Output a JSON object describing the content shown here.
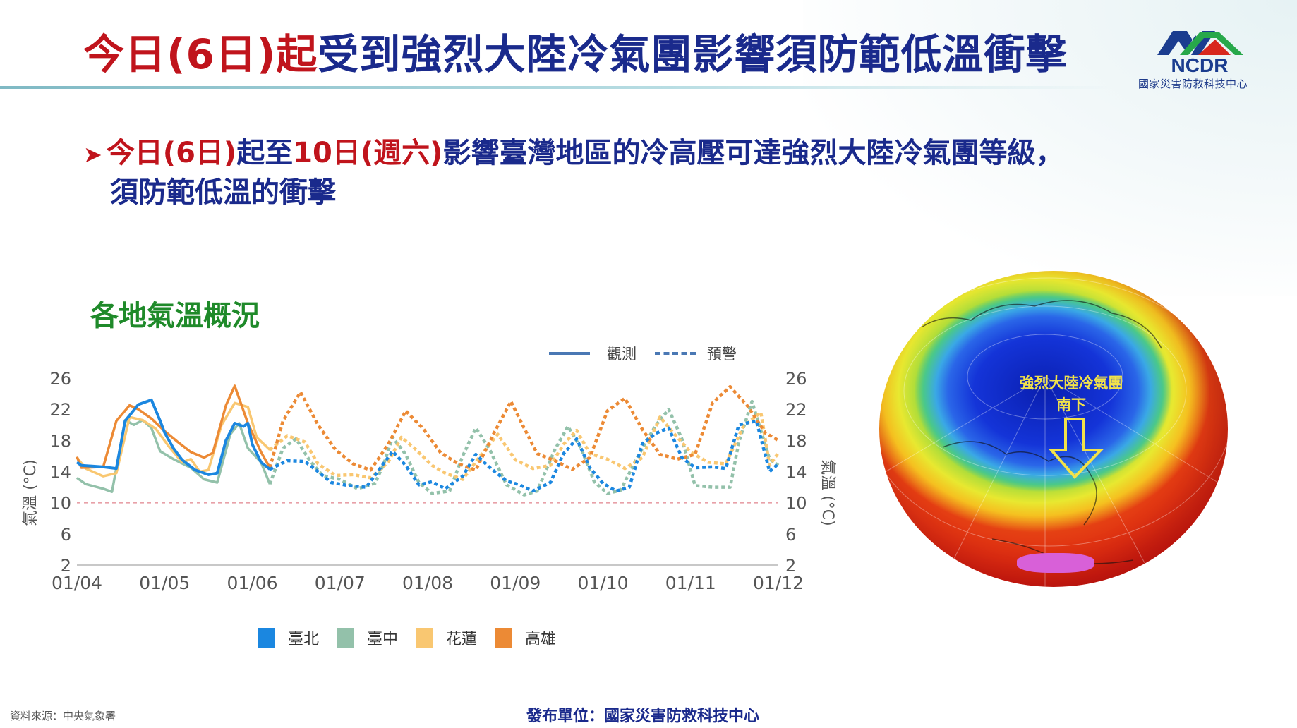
{
  "slide": {
    "title_red": "今日(6日)起",
    "title_blue": "受到強烈大陸冷氣團影響須防範低溫衝擊",
    "logo": {
      "acronym": "NCDR",
      "org_name": "國家災害防救科技中心"
    },
    "bullet": {
      "icon": "➤",
      "red_part1": "今日(6日)",
      "blue_part1": "起至",
      "red_part2": "10日(週六)",
      "blue_part2": "影響臺灣地區的冷高壓可達強烈大陸冷氣團等級，",
      "line2": "須防範低溫的衝擊"
    },
    "chart_section_title": "各地氣溫概況",
    "globe": {
      "label_line1": "強烈大陸冷氣團",
      "label_line2": "南下",
      "arrow_color": "#f2e24a"
    },
    "footer": {
      "source": "資料來源：中央氣象署",
      "publisher": "發布單位：國家災害防救科技中心"
    }
  },
  "chart_data": {
    "type": "line",
    "title": "各地氣溫概況",
    "xlabel": "",
    "ylabel": "氣溫 (°C)",
    "ylim": [
      2,
      26
    ],
    "yticks": [
      "26",
      "22",
      "18",
      "14",
      "10",
      "6",
      "2"
    ],
    "x_tick_labels": [
      "01/04",
      "01/05",
      "01/06",
      "01/07",
      "01/08",
      "01/09",
      "01/10",
      "01/11",
      "01/12"
    ],
    "reference_line": {
      "value": 10,
      "style": "dotted",
      "color": "#e8a0a8"
    },
    "line_style_legend": [
      {
        "label": "觀測",
        "style": "solid",
        "color": "#4a78b4"
      },
      {
        "label": "預警",
        "style": "dashed",
        "color": "#4a78b4"
      }
    ],
    "legend": [
      {
        "label": "臺北",
        "color": "#1b87e0"
      },
      {
        "label": "臺中",
        "color": "#93c1aa"
      },
      {
        "label": "花蓮",
        "color": "#f9c771"
      },
      {
        "label": "高雄",
        "color": "#ec8a35"
      }
    ],
    "observed_until_day": 2.2,
    "series": [
      {
        "name": "臺北",
        "color": "#1b87e0",
        "observed_x": [
          0,
          0.05,
          0.3,
          0.45,
          0.55,
          0.7,
          0.85,
          0.95,
          1.0,
          1.1,
          1.2,
          1.35,
          1.5,
          1.6,
          1.7,
          1.8,
          1.9,
          1.95,
          2.0,
          2.1,
          2.2
        ],
        "observed_y": [
          15.2,
          14.8,
          14.6,
          14.4,
          20.5,
          22.6,
          23.2,
          20.5,
          19.0,
          17.0,
          15.5,
          14.2,
          13.6,
          13.8,
          18.0,
          20.2,
          19.8,
          20.2,
          17.5,
          15.2,
          14.3
        ],
        "forecast_x": [
          2.2,
          2.4,
          2.6,
          2.75,
          2.9,
          3.1,
          3.3,
          3.45,
          3.6,
          3.75,
          3.9,
          4.05,
          4.2,
          4.4,
          4.55,
          4.7,
          4.9,
          5.05,
          5.2,
          5.4,
          5.55,
          5.7,
          5.85,
          6.0,
          6.15,
          6.3,
          6.45,
          6.6,
          6.75,
          6.9,
          7.05,
          7.25,
          7.4,
          7.55,
          7.75,
          7.9,
          8.0
        ],
        "forecast_y": [
          14.3,
          15.4,
          15.3,
          14.0,
          12.6,
          12.2,
          12.0,
          14.3,
          16.6,
          14.8,
          12.3,
          12.7,
          11.8,
          13.4,
          16.2,
          14.6,
          12.8,
          12.3,
          11.5,
          12.6,
          16.3,
          18.2,
          14.5,
          12.5,
          11.5,
          12.0,
          17.6,
          18.9,
          19.6,
          15.8,
          14.5,
          14.6,
          14.4,
          20.0,
          20.5,
          14.0,
          15.0
        ]
      },
      {
        "name": "臺中",
        "color": "#93c1aa",
        "observed_x": [
          0,
          0.1,
          0.3,
          0.4,
          0.55,
          0.65,
          0.75,
          0.85,
          0.95,
          1.1,
          1.3,
          1.45,
          1.6,
          1.75,
          1.85,
          1.95,
          2.1,
          2.2
        ],
        "observed_y": [
          13.2,
          12.4,
          11.8,
          11.4,
          20.6,
          20.0,
          20.6,
          19.6,
          16.6,
          15.6,
          14.5,
          13.0,
          12.6,
          18.8,
          20.2,
          17.0,
          15.2,
          12.4
        ],
        "forecast_x": [
          2.2,
          2.35,
          2.5,
          2.65,
          2.8,
          3.0,
          3.2,
          3.4,
          3.5,
          3.6,
          3.75,
          3.9,
          4.05,
          4.25,
          4.4,
          4.55,
          4.7,
          4.9,
          5.1,
          5.25,
          5.45,
          5.6,
          5.75,
          5.9,
          6.05,
          6.2,
          6.4,
          6.6,
          6.75,
          6.9,
          7.05,
          7.25,
          7.45,
          7.55,
          7.7,
          7.9,
          8.0
        ],
        "forecast_y": [
          12.4,
          17.0,
          18.2,
          15.5,
          13.5,
          13.0,
          11.8,
          12.5,
          15.0,
          18.4,
          16.2,
          12.6,
          11.2,
          11.5,
          16.0,
          19.6,
          17.0,
          12.3,
          11.0,
          11.5,
          16.8,
          19.8,
          17.0,
          12.7,
          11.2,
          11.6,
          16.0,
          19.9,
          22.0,
          18.2,
          12.2,
          12.0,
          12.0,
          17.8,
          23.0,
          15.6,
          14.8
        ]
      },
      {
        "name": "花蓮",
        "color": "#f9c771",
        "observed_x": [
          0,
          0.1,
          0.3,
          0.45,
          0.6,
          0.75,
          0.9,
          1.05,
          1.2,
          1.3,
          1.4,
          1.5,
          1.65,
          1.8,
          1.95,
          2.05,
          2.2
        ],
        "observed_y": [
          15.8,
          14.4,
          13.4,
          13.8,
          21.0,
          20.6,
          19.5,
          17.2,
          15.2,
          15.6,
          14.0,
          14.2,
          20.0,
          22.8,
          22.3,
          18.4,
          16.8
        ],
        "forecast_x": [
          2.2,
          2.4,
          2.6,
          2.75,
          2.95,
          3.15,
          3.35,
          3.55,
          3.7,
          3.85,
          4.05,
          4.2,
          4.4,
          4.6,
          4.8,
          5.0,
          5.2,
          5.4,
          5.55,
          5.7,
          5.85,
          6.05,
          6.25,
          6.45,
          6.65,
          6.8,
          7.0,
          7.2,
          7.4,
          7.6,
          7.8,
          7.9,
          8.0
        ],
        "forecast_y": [
          16.8,
          18.6,
          17.8,
          15.0,
          13.5,
          13.6,
          13.2,
          15.2,
          18.4,
          17.0,
          14.8,
          13.8,
          13.0,
          16.0,
          18.8,
          15.5,
          14.4,
          14.8,
          17.5,
          19.3,
          16.3,
          15.6,
          14.4,
          15.8,
          21.0,
          19.0,
          16.5,
          15.2,
          15.0,
          19.8,
          21.6,
          14.8,
          16.4
        ]
      },
      {
        "name": "高雄",
        "color": "#ec8a35",
        "observed_x": [
          0,
          0.05,
          0.3,
          0.45,
          0.6,
          0.7,
          0.85,
          1.0,
          1.15,
          1.3,
          1.45,
          1.55,
          1.7,
          1.8,
          1.95,
          2.1,
          2.2
        ],
        "observed_y": [
          15.9,
          14.5,
          14.6,
          20.5,
          22.5,
          22.0,
          20.8,
          19.2,
          17.8,
          16.5,
          15.8,
          16.4,
          22.5,
          25.0,
          20.2,
          16.5,
          14.5
        ],
        "forecast_x": [
          2.2,
          2.35,
          2.55,
          2.75,
          2.95,
          3.15,
          3.35,
          3.55,
          3.75,
          3.95,
          4.15,
          4.35,
          4.55,
          4.75,
          4.95,
          5.1,
          5.25,
          5.45,
          5.65,
          5.85,
          6.05,
          6.25,
          6.45,
          6.65,
          6.85,
          7.05,
          7.25,
          7.45,
          7.65,
          7.85,
          8.0
        ],
        "forecast_y": [
          14.5,
          20.5,
          24.2,
          20.0,
          16.8,
          15.0,
          14.2,
          17.5,
          21.8,
          19.5,
          16.4,
          15.0,
          14.2,
          18.8,
          23.0,
          19.6,
          16.3,
          15.4,
          14.3,
          15.8,
          21.8,
          23.4,
          19.4,
          16.2,
          15.6,
          16.2,
          22.8,
          24.9,
          22.4,
          19.0,
          18.0
        ]
      }
    ]
  }
}
